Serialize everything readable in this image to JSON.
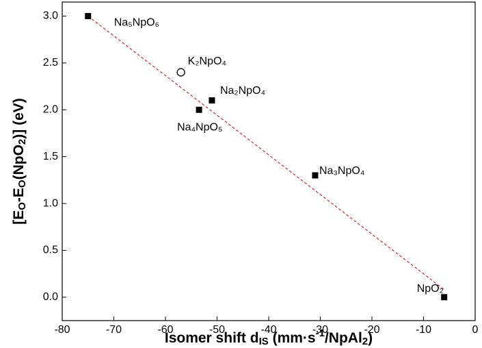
{
  "chart_data": {
    "type": "scatter",
    "x_label": [
      "Isomer shift d",
      {
        "text": "IS",
        "pos": "sub"
      },
      " (mm·s",
      {
        "text": "-1",
        "pos": "sup"
      },
      "/NpAl",
      {
        "text": "2",
        "pos": "sub"
      },
      ")"
    ],
    "y_label": [
      "[E",
      {
        "text": "O",
        "pos": "sub"
      },
      "-E",
      {
        "text": "O",
        "pos": "sub"
      },
      "(NpO",
      {
        "text": "2",
        "pos": "sub"
      },
      ")] (eV)"
    ],
    "labels": [
      "Na₅NpO₆",
      "K₂NpO₄",
      "Na₂NpO₄",
      "Na₄NpO₅",
      "Na₃NpO₄",
      "NpO₂"
    ],
    "x": [
      -75,
      -57,
      -51,
      -53.5,
      -31,
      -6
    ],
    "values": [
      3.0,
      2.4,
      2.1,
      2.0,
      1.3,
      0.0
    ],
    "markers": [
      "square",
      "circle",
      "square",
      "square",
      "square",
      "square"
    ],
    "color": "#000000",
    "fit_line": {
      "x": [
        -75,
        -6
      ],
      "y": [
        3.0,
        0.08
      ],
      "color": "#e02020",
      "dashed": true
    },
    "xlim": [
      -80,
      0
    ],
    "xticks": [
      -80,
      -70,
      -60,
      -50,
      -40,
      -30,
      -20,
      -10,
      0
    ],
    "ylim": [
      -0.25,
      3.15
    ],
    "yticks": [
      {
        "value": 0,
        "label": "0.0"
      },
      0.5,
      {
        "value": 1,
        "label": "1.0"
      },
      1.5,
      {
        "value": 2,
        "label": "2.0"
      },
      2.5,
      {
        "value": 3,
        "label": "3.0"
      }
    ]
  }
}
